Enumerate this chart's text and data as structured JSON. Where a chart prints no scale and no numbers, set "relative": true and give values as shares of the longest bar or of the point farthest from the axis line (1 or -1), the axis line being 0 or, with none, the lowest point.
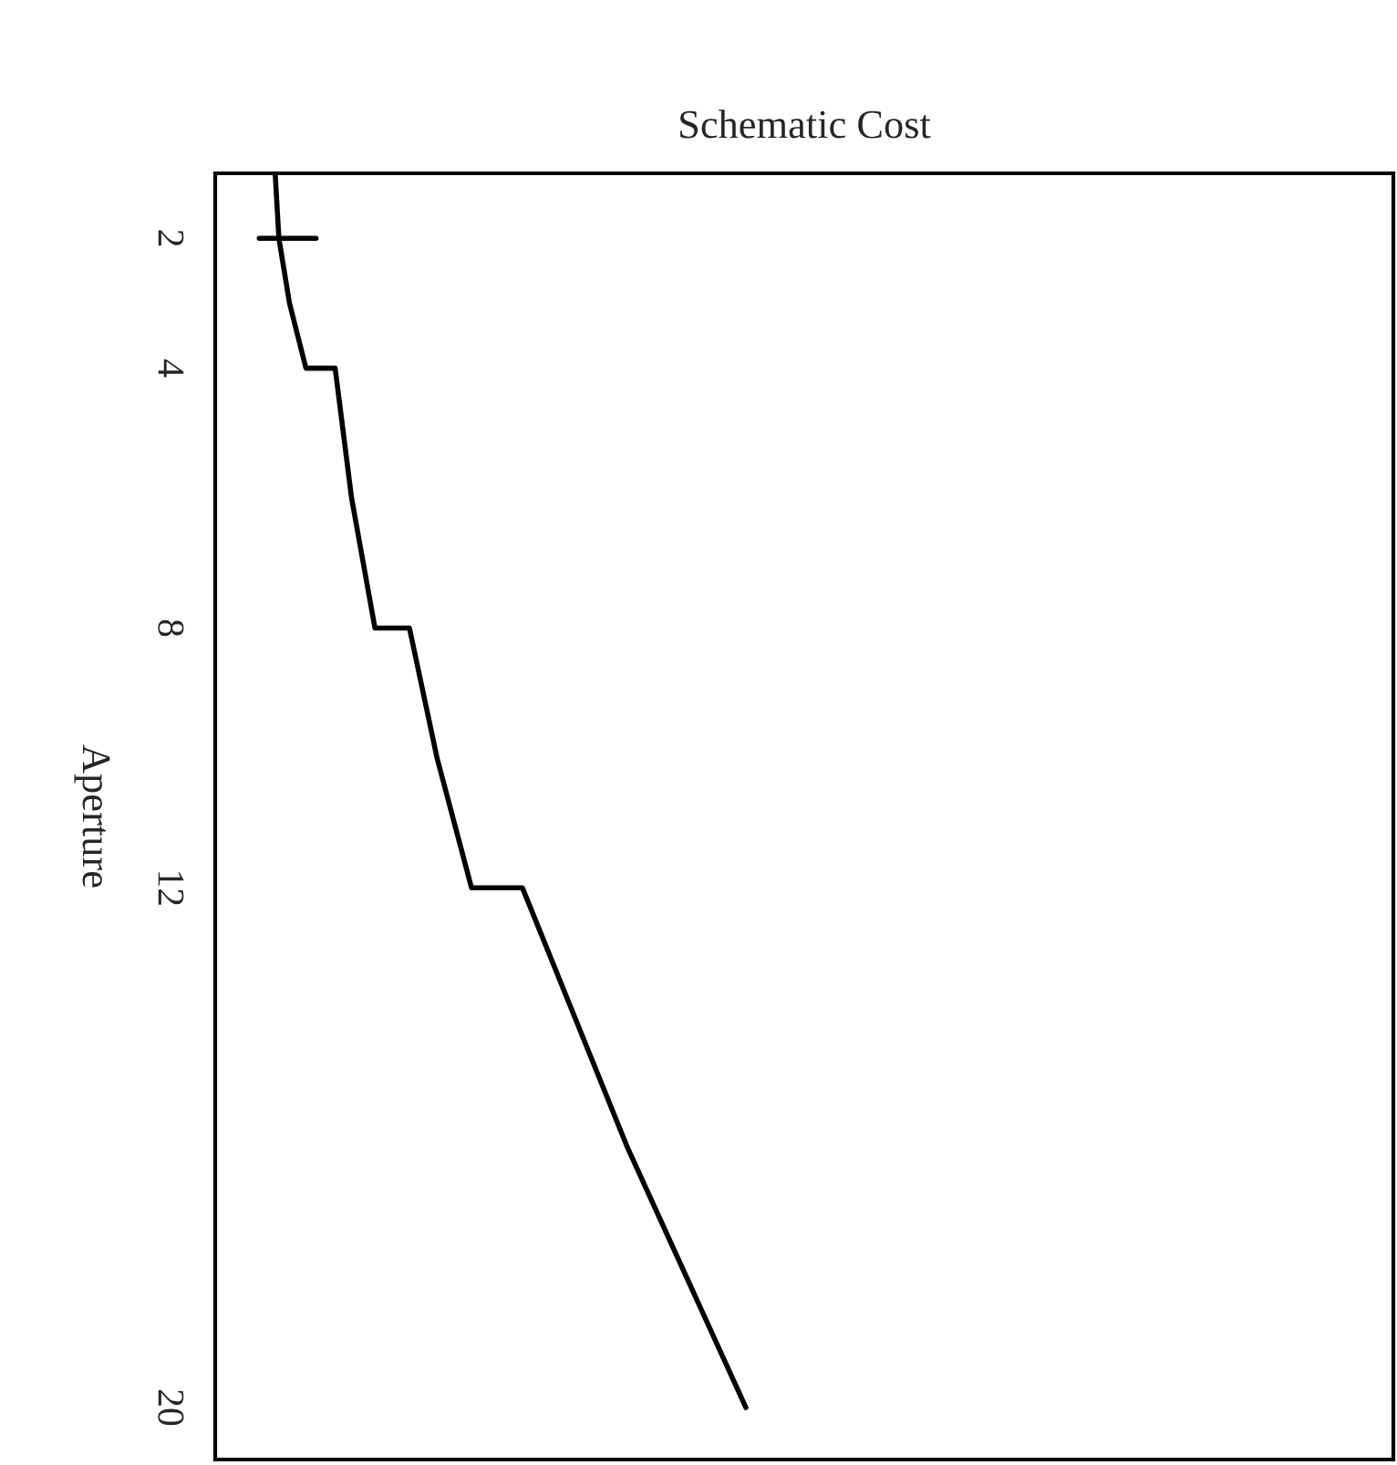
{
  "chart_data": {
    "type": "line",
    "orientation": "horizontal",
    "relative": true,
    "xlabel": "Schematic Cost",
    "ylabel": "Aperture",
    "x": [
      1,
      2,
      2,
      2,
      2,
      3,
      4,
      4,
      6,
      8,
      8,
      10,
      12,
      12,
      16,
      20
    ],
    "ylim": [
      20.8,
      1
    ],
    "yticks": [
      2,
      4,
      8,
      12,
      20
    ],
    "series": [
      {
        "color": "#000000",
        "values": [
          0.113,
          0.12,
          0.083,
          0.19,
          0.12,
          0.14,
          0.171,
          0.226,
          0.257,
          0.301,
          0.366,
          0.418,
          0.483,
          0.579,
          0.777,
          1.0
        ]
      }
    ],
    "grid": false,
    "legend": false,
    "marker": "none",
    "line_style": "solid"
  }
}
